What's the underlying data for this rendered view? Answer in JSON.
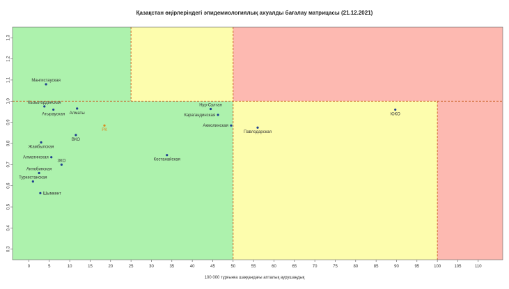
{
  "chart_data": {
    "type": "scatter",
    "title": "Қазақстан өңірлеріндегі эпидемиологиялық ахуалды бағалау матрицасы  (21.12.2021)",
    "xlabel": "100 000 тұрғынға шаққандағы апталық аурушаңдық",
    "ylabel": "",
    "xlim": [
      -4,
      116
    ],
    "ylim": [
      0.25,
      1.35
    ],
    "x_ticks": [
      0,
      5,
      10,
      15,
      20,
      25,
      30,
      35,
      40,
      45,
      50,
      55,
      60,
      65,
      70,
      75,
      80,
      85,
      90,
      95,
      100,
      105,
      110
    ],
    "y_ticks": [
      0.3,
      0.4,
      0.5,
      0.6,
      0.7,
      0.8,
      0.9,
      1.0,
      1.1,
      1.2,
      1.3
    ],
    "y_tick_labels": [
      "0.3",
      "0.4",
      "0.5",
      "0.6",
      "0.7",
      "0.8",
      "0.9",
      "1.0",
      "1.1",
      "1.2",
      "1.3"
    ],
    "grid": false,
    "zones": [
      {
        "x0": -4,
        "x1": 25,
        "y0": 1.0,
        "y1": 1.35,
        "color": "#adf2ad"
      },
      {
        "x0": 25,
        "x1": 50,
        "y0": 1.0,
        "y1": 1.35,
        "color": "#fdfdad"
      },
      {
        "x0": 50,
        "x1": 116,
        "y0": 1.0,
        "y1": 1.35,
        "color": "#fdb9b1"
      },
      {
        "x0": -4,
        "x1": 50,
        "y0": 0.25,
        "y1": 1.0,
        "color": "#adf2ad"
      },
      {
        "x0": 50,
        "x1": 100,
        "y0": 0.25,
        "y1": 1.0,
        "color": "#fdfdad"
      },
      {
        "x0": 100,
        "x1": 116,
        "y0": 0.25,
        "y1": 1.0,
        "color": "#fdb9b1"
      }
    ],
    "threshold_lines": [
      {
        "axis": "x",
        "value": 25,
        "y0": 1.0,
        "y1": 1.35
      },
      {
        "axis": "x",
        "value": 50,
        "y0": 0.25,
        "y1": 1.35
      },
      {
        "axis": "x",
        "value": 100,
        "y0": 0.25,
        "y1": 1.0
      },
      {
        "axis": "y",
        "value": 1.0,
        "x0": -4,
        "x1": 116
      }
    ],
    "threshold_color": "#c85a1e",
    "point_color": "#1f3f8f",
    "highlight_color": "#d98a1c",
    "points": [
      {
        "label": "Мангистауская",
        "x": 4.2,
        "y": 1.08,
        "anchor": "middle",
        "pos": "above"
      },
      {
        "label": "Кызылординская",
        "x": 3.8,
        "y": 0.975,
        "anchor": "middle",
        "pos": "above"
      },
      {
        "label": "Атырауская",
        "x": 6.0,
        "y": 0.96,
        "anchor": "middle",
        "pos": "below"
      },
      {
        "label": "Алматы",
        "x": 11.8,
        "y": 0.965,
        "anchor": "middle",
        "pos": "below"
      },
      {
        "label": "РК",
        "x": 18.5,
        "y": 0.885,
        "anchor": "middle",
        "pos": "below",
        "highlight": true
      },
      {
        "label": "ВКО",
        "x": 11.5,
        "y": 0.84,
        "anchor": "middle",
        "pos": "below"
      },
      {
        "label": "Жамбылская",
        "x": 3.0,
        "y": 0.805,
        "anchor": "middle",
        "pos": "below"
      },
      {
        "label": "Алматинская",
        "x": 5.5,
        "y": 0.735,
        "anchor": "end",
        "pos": "left"
      },
      {
        "label": "ЗКО",
        "x": 8.0,
        "y": 0.7,
        "anchor": "middle",
        "pos": "above"
      },
      {
        "label": "Актюбинская",
        "x": 2.5,
        "y": 0.66,
        "anchor": "middle",
        "pos": "above"
      },
      {
        "label": "Туркестанская",
        "x": 1.0,
        "y": 0.62,
        "anchor": "middle",
        "pos": "above"
      },
      {
        "label": "Шымкент",
        "x": 2.8,
        "y": 0.565,
        "anchor": "start",
        "pos": "right"
      },
      {
        "label": "Костанайская",
        "x": 33.8,
        "y": 0.745,
        "anchor": "middle",
        "pos": "below"
      },
      {
        "label": "Нур-Султан",
        "x": 44.5,
        "y": 0.963,
        "anchor": "middle",
        "pos": "above"
      },
      {
        "label": "Карагандинская",
        "x": 46.3,
        "y": 0.935,
        "anchor": "end",
        "pos": "left"
      },
      {
        "label": "Акмолинская",
        "x": 49.5,
        "y": 0.885,
        "anchor": "end",
        "pos": "left"
      },
      {
        "label": "Павлодарская",
        "x": 56.0,
        "y": 0.875,
        "anchor": "middle",
        "pos": "below"
      },
      {
        "label": "ЮКО",
        "x": 89.7,
        "y": 0.96,
        "anchor": "middle",
        "pos": "below"
      }
    ]
  }
}
